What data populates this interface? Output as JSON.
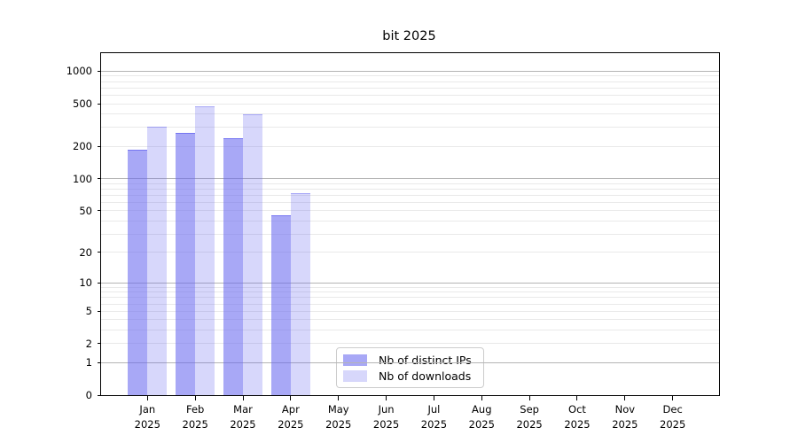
{
  "figure": {
    "title": "bit 2025"
  },
  "chart_data": {
    "type": "bar",
    "title": "bit 2025",
    "xlabel": "",
    "ylabel": "",
    "y_scale": "log10(1+x)",
    "ylim": [
      0,
      1470
    ],
    "y_ticks": [
      1000,
      500,
      200,
      100,
      50,
      20,
      10,
      5,
      2,
      1,
      0
    ],
    "grid": {
      "on": true,
      "major_values": [
        1,
        10,
        100,
        1000
      ],
      "minor_values": [
        2,
        3,
        4,
        5,
        6,
        7,
        8,
        9,
        20,
        30,
        40,
        50,
        60,
        70,
        80,
        90,
        200,
        300,
        400,
        500,
        600,
        700,
        800,
        900
      ],
      "major_color": "#b4b4b4",
      "minor_color": "#e9e9e9"
    },
    "categories": [
      "Jan",
      "Feb",
      "Mar",
      "Apr",
      "May",
      "Jun",
      "Jul",
      "Aug",
      "Sep",
      "Oct",
      "Nov",
      "Dec"
    ],
    "year": "2025",
    "series": [
      {
        "name": "Nb of distinct IPs",
        "values": [
          185,
          268,
          238,
          45,
          null,
          null,
          null,
          null,
          null,
          null,
          null,
          null
        ],
        "color": "rgba(102,102,240,0.57)",
        "edge_color": "rgba(102,102,240,0.78)",
        "legend_color": "#a8a8f6"
      },
      {
        "name": "Nb of downloads",
        "values": [
          308,
          470,
          396,
          74,
          null,
          null,
          null,
          null,
          null,
          null,
          null,
          null
        ],
        "color": "rgba(102,102,240,0.26)",
        "edge_color": "rgba(102,102,240,0.42)",
        "legend_color": "#d7d7fb"
      }
    ],
    "legend_position": "lower center-left inside plot"
  },
  "colors": {
    "axis": "#000000",
    "background": "#ffffff",
    "text": "#000000"
  }
}
